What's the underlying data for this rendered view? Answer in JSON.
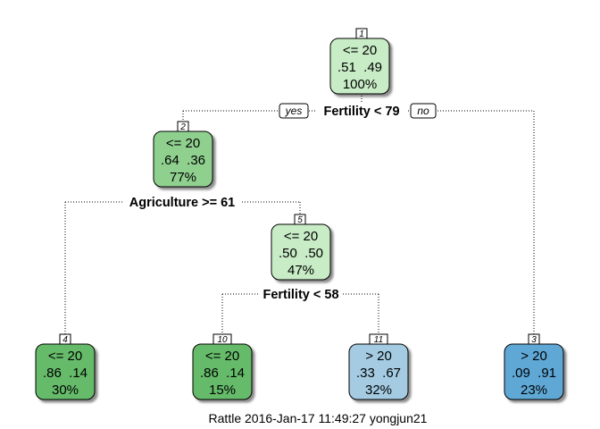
{
  "tree": {
    "caption": "Rattle 2016-Jan-17 11:49:27 yongjun21",
    "yes_label": "yes",
    "no_label": "no",
    "colors": {
      "le20_strong": "#66bb6a",
      "le20_mid": "#8fd08f",
      "le20_light": "#c8ecc6",
      "gt20_light": "#a4cbe2",
      "gt20_strong": "#5ea8d6"
    },
    "nodes": [
      {
        "id": "1",
        "class": "<= 20",
        "probs": ".51  .49",
        "pct": "100%"
      },
      {
        "id": "2",
        "class": "<= 20",
        "probs": ".64  .36",
        "pct": "77%"
      },
      {
        "id": "5",
        "class": "<= 20",
        "probs": ".50  .50",
        "pct": "47%"
      },
      {
        "id": "4",
        "class": "<= 20",
        "probs": ".86  .14",
        "pct": "30%"
      },
      {
        "id": "10",
        "class": "<= 20",
        "probs": ".86  .14",
        "pct": "15%"
      },
      {
        "id": "11",
        "class": "> 20",
        "probs": ".33  .67",
        "pct": "32%"
      },
      {
        "id": "3",
        "class": "> 20",
        "probs": ".09  .91",
        "pct": "23%"
      }
    ],
    "splits": [
      {
        "node": "1",
        "label": "Fertility < 79"
      },
      {
        "node": "2",
        "label": "Agriculture >= 61"
      },
      {
        "node": "5",
        "label": "Fertility < 58"
      }
    ]
  }
}
